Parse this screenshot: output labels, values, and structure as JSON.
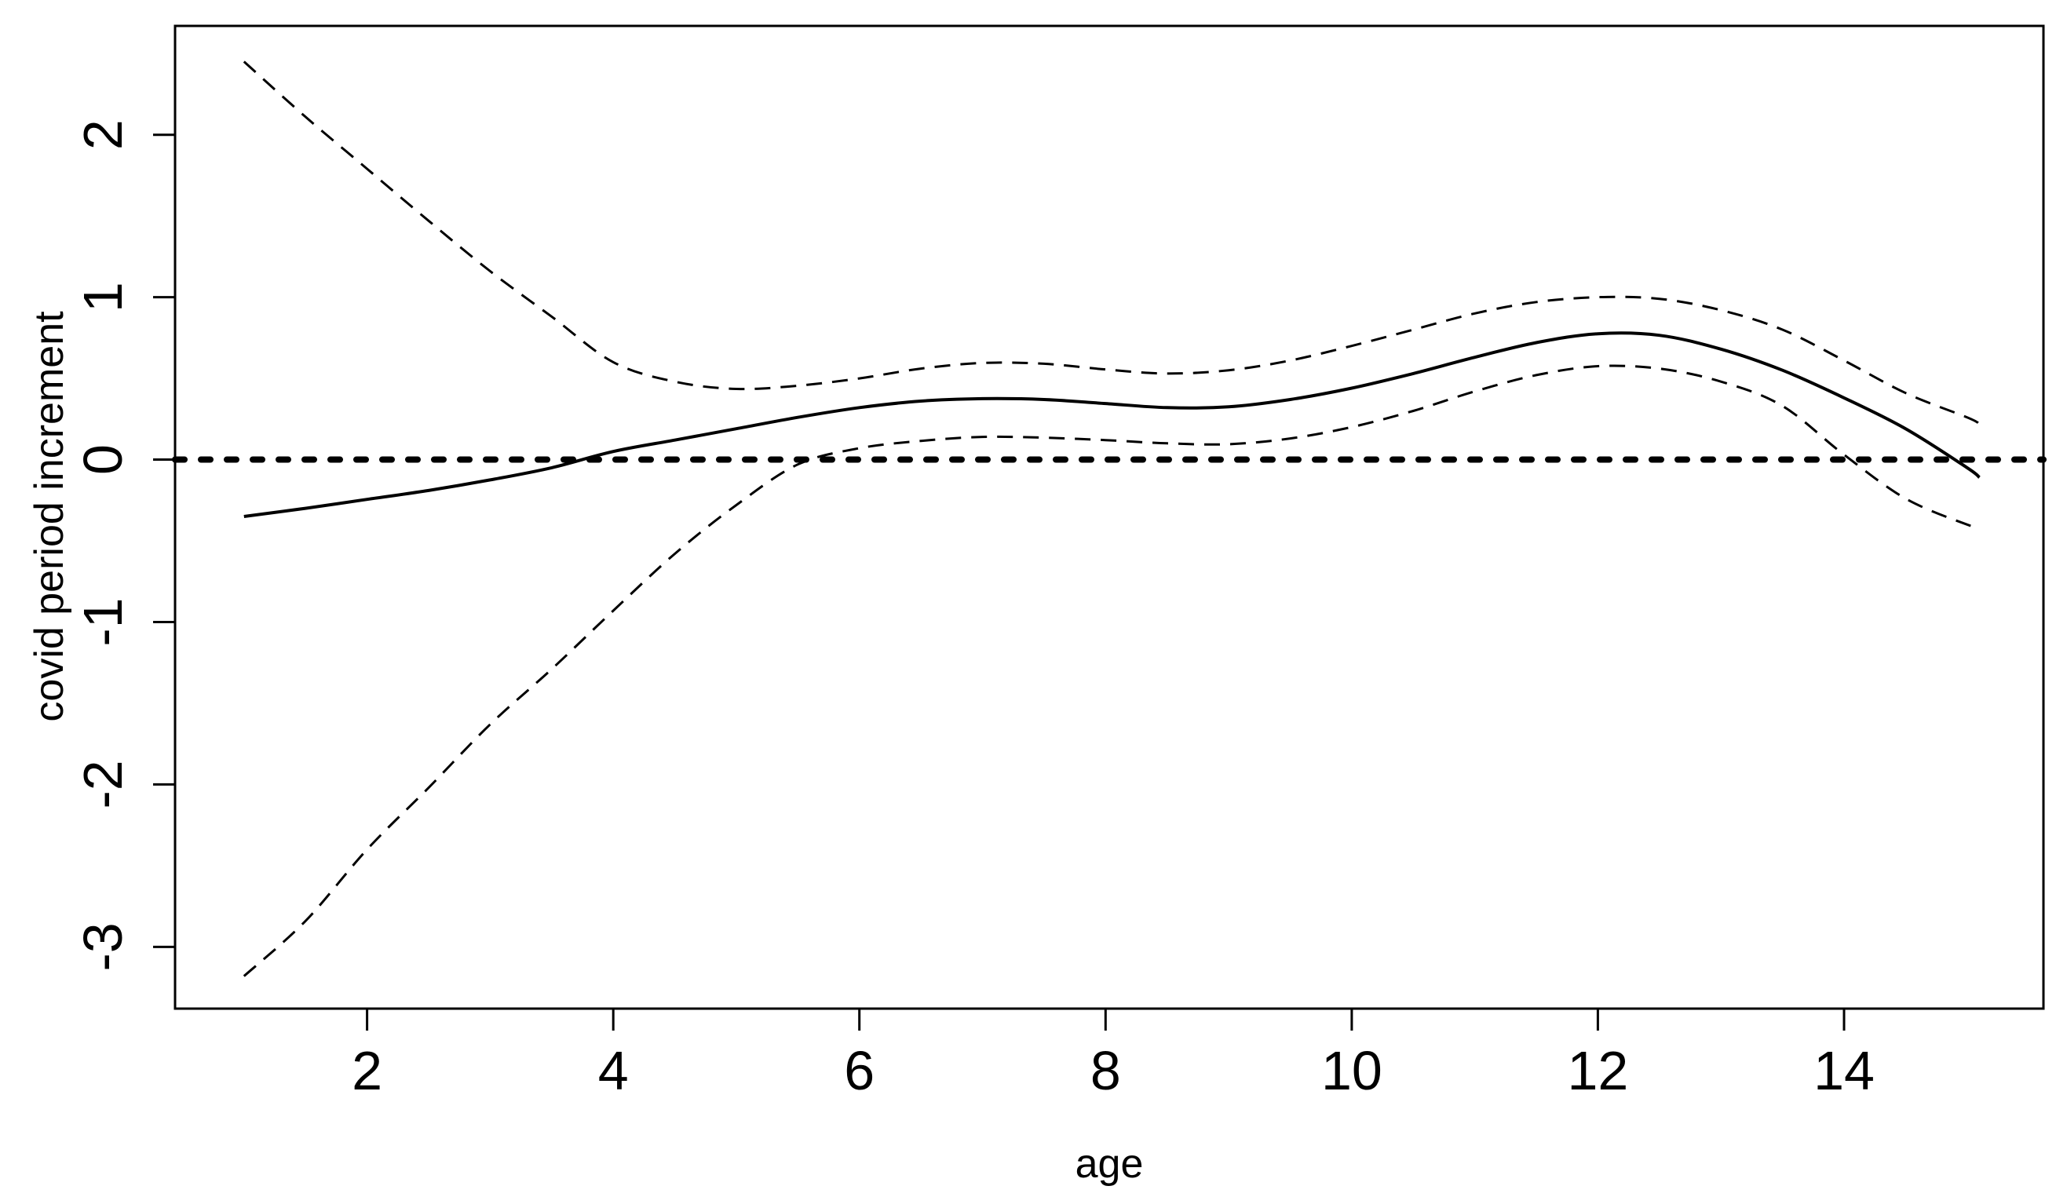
{
  "figure": {
    "kind": "R-base-graphics line plot",
    "background_color": "#ffffff",
    "line_color": "#000000"
  },
  "chart_data": {
    "type": "line",
    "title": "",
    "xlabel": "age",
    "ylabel": "covid period increment",
    "x_ticks": [
      2,
      4,
      6,
      8,
      10,
      12,
      14
    ],
    "y_ticks": [
      2,
      1,
      0,
      -1,
      -2,
      -3
    ],
    "xlim": [
      0.44,
      15.62
    ],
    "ylim": [
      -3.38,
      2.67
    ],
    "grid": false,
    "legend": "none",
    "x": [
      1.0,
      1.5,
      2.0,
      2.5,
      3.0,
      3.5,
      4.0,
      4.5,
      5.0,
      5.5,
      6.0,
      6.5,
      7.0,
      7.5,
      8.0,
      8.5,
      9.0,
      9.5,
      10.0,
      10.5,
      11.0,
      11.5,
      12.0,
      12.5,
      13.0,
      13.5,
      14.0,
      14.5,
      15.0,
      15.1
    ],
    "series": [
      {
        "name": "smooth estimate",
        "style": "solid",
        "stroke_width": 4,
        "values": [
          -0.35,
          -0.3,
          -0.245,
          -0.19,
          -0.125,
          -0.05,
          0.05,
          0.12,
          0.19,
          0.26,
          0.32,
          0.36,
          0.375,
          0.37,
          0.345,
          0.32,
          0.325,
          0.37,
          0.44,
          0.53,
          0.63,
          0.72,
          0.775,
          0.765,
          0.68,
          0.55,
          0.38,
          0.19,
          -0.05,
          -0.11
        ]
      },
      {
        "name": "confidence upper",
        "style": "dashed",
        "stroke_width": 3,
        "values": [
          2.45,
          2.11,
          1.79,
          1.47,
          1.16,
          0.88,
          0.6,
          0.48,
          0.435,
          0.455,
          0.5,
          0.56,
          0.595,
          0.59,
          0.555,
          0.53,
          0.55,
          0.61,
          0.7,
          0.8,
          0.9,
          0.97,
          1.0,
          0.99,
          0.92,
          0.8,
          0.61,
          0.41,
          0.26,
          0.22
        ]
      },
      {
        "name": "confidence lower",
        "style": "dashed",
        "stroke_width": 3,
        "values": [
          -3.18,
          -2.84,
          -2.4,
          -2.02,
          -1.63,
          -1.29,
          -0.93,
          -0.58,
          -0.28,
          -0.03,
          0.07,
          0.115,
          0.14,
          0.135,
          0.12,
          0.1,
          0.095,
          0.13,
          0.2,
          0.3,
          0.42,
          0.52,
          0.575,
          0.56,
          0.48,
          0.33,
          0.03,
          -0.24,
          -0.4,
          -0.41
        ]
      }
    ],
    "reference_line": {
      "y": 0,
      "style": "bold-dotted",
      "stroke_width": 8
    }
  }
}
